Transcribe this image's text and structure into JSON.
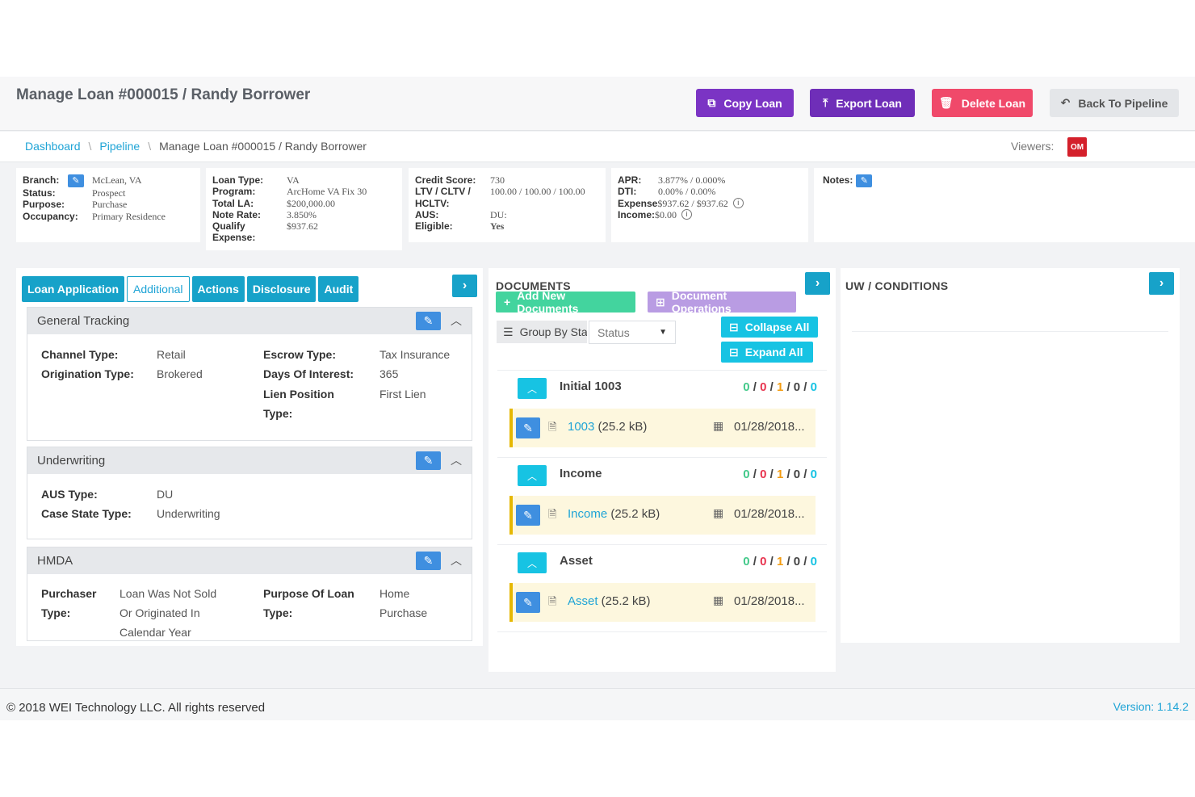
{
  "header": {
    "title": "Manage Loan #000015 / Randy Borrower",
    "copy_label": "Copy Loan",
    "export_label": "Export Loan",
    "delete_label": "Delete Loan",
    "back_label": "Back To Pipeline"
  },
  "breadcrumb": {
    "items": [
      "Dashboard",
      "Pipeline"
    ],
    "current": "Manage Loan #000015 / Randy Borrower",
    "viewers_label": "Viewers:",
    "viewer_initials": "OM"
  },
  "summary": {
    "col1": {
      "branch_k": "Branch:",
      "branch_v": "McLean, VA",
      "status_k": "Status:",
      "status_v": "Prospect",
      "purpose_k": "Purpose:",
      "purpose_v": "Purchase",
      "occupancy_k": "Occupancy:",
      "occupancy_v": "Primary Residence"
    },
    "col2": {
      "loantype_k": "Loan Type:",
      "loantype_v": "VA",
      "program_k": "Program:",
      "program_v": "ArcHome VA Fix 30",
      "totalla_k": "Total LA:",
      "totalla_v": "$200,000.00",
      "noterate_k": "Note Rate:",
      "noterate_v": "3.850%",
      "qualify_k1": "Qualify",
      "qualify_k2": "Expense:",
      "qualify_v": "$937.62"
    },
    "col3": {
      "credit_k": "Credit Score:",
      "credit_v": "730",
      "ltv_k1": "LTV / CLTV /",
      "ltv_k2": "HCLTV:",
      "ltv_v": "100.00 / 100.00 / 100.00",
      "aus_k": "AUS:",
      "aus_v": "DU:",
      "eligible_k": "Eligible:",
      "eligible_v": "Yes"
    },
    "col4": {
      "apr_k": "APR:",
      "apr_v": "3.877% / 0.000%",
      "dti_k": "DTI:",
      "dti_v": "0.00% / 0.00%",
      "expense_k": "Expense",
      "expense_v": "$937.62 / $937.62",
      "income_k": "Income:",
      "income_v": "$0.00"
    },
    "notes_label": "Notes:"
  },
  "left_panel": {
    "tabs": [
      {
        "label": "Loan Application",
        "active": false
      },
      {
        "label": "Additional",
        "active": true
      },
      {
        "label": "Actions",
        "active": false
      },
      {
        "label": "Disclosure",
        "active": false
      },
      {
        "label": "Audit",
        "active": false
      }
    ],
    "general_tracking": {
      "title": "General Tracking",
      "channel_k": "Channel Type:",
      "channel_v": "Retail",
      "origination_k": "Origination Type:",
      "origination_v": "Brokered",
      "escrow_k": "Escrow Type:",
      "escrow_v": "Tax Insurance",
      "days_k": "Days Of Interest:",
      "days_v": "365",
      "lien_k1": "Lien Position",
      "lien_k2": "Type:",
      "lien_v": "First Lien"
    },
    "underwriting": {
      "title": "Underwriting",
      "aus_k": "AUS Type:",
      "aus_v": "DU",
      "case_k": "Case State Type:",
      "case_v": "Underwriting"
    },
    "hmda": {
      "title": "HMDA",
      "purchaser_k1": "Purchaser",
      "purchaser_k2": "Type:",
      "purchaser_v1": "Loan Was Not Sold",
      "purchaser_v2": "Or Originated In",
      "purchaser_v3": "Calendar Year",
      "purpose_k1": "Purpose Of Loan",
      "purpose_k2": "Type:",
      "purpose_v1": "Home",
      "purpose_v2": "Purchase"
    }
  },
  "documents": {
    "title": "DOCUMENTS",
    "add_label": "Add New Documents",
    "ops_label": "Document Operations",
    "groupby_label": "Group By Sta",
    "status_value": "Status",
    "collapse_label": "Collapse All",
    "expand_label": "Expand All",
    "groups": [
      {
        "name": "Initial 1003",
        "counts": [
          "0",
          "0",
          "1",
          "0",
          "0"
        ],
        "file": "1003",
        "size": " (25.2 kB)",
        "date": "01/28/2018..."
      },
      {
        "name": "Income",
        "counts": [
          "0",
          "0",
          "1",
          "0",
          "0"
        ],
        "file": "Income",
        "size": " (25.2 kB)",
        "date": "01/28/2018..."
      },
      {
        "name": "Asset",
        "counts": [
          "0",
          "0",
          "1",
          "0",
          "0"
        ],
        "file": "Asset",
        "size": " (25.2 kB)",
        "date": "01/28/2018..."
      }
    ]
  },
  "uw": {
    "title": "UW / CONDITIONS"
  },
  "footer": {
    "copyright": "© 2018 WEI Technology LLC. All rights reserved",
    "version": "Version: 1.14.2"
  },
  "colors": {
    "primary_purple": "#7b34c4",
    "delete_pink": "#f0496a",
    "teal": "#17a2c9",
    "green": "#43d49e",
    "link_blue": "#1fa4d6"
  }
}
